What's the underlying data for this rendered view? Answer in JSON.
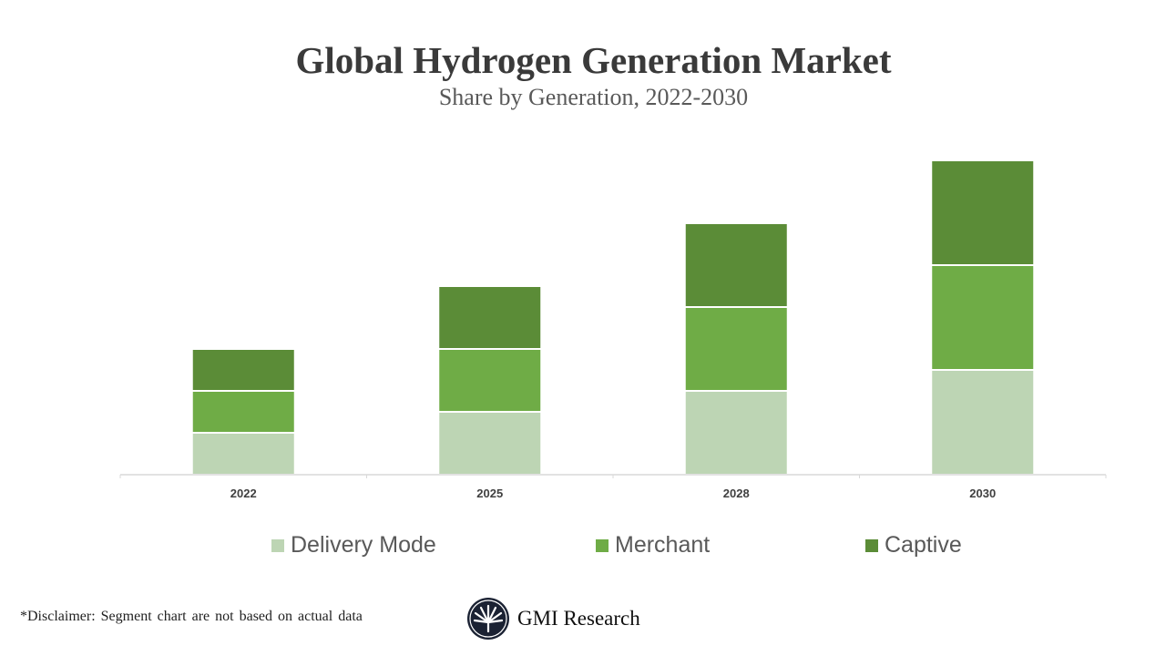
{
  "chart_data": {
    "type": "bar",
    "stacked": true,
    "title": "Global Hydrogen Generation Market",
    "subtitle": "Share by Generation, 2022-2030",
    "categories": [
      "2022",
      "2025",
      "2028",
      "2030"
    ],
    "series": [
      {
        "name": "Delivery Mode",
        "color": "#bdd5b4",
        "values": [
          2,
          3,
          4,
          5
        ]
      },
      {
        "name": "Merchant",
        "color": "#6fac46",
        "values": [
          2,
          3,
          4,
          5
        ]
      },
      {
        "name": "Captive",
        "color": "#5b8c37",
        "values": [
          2,
          3,
          4,
          5
        ]
      }
    ],
    "ylim": [
      0,
      16
    ],
    "grid": false,
    "y_axis_visible": false,
    "legend": "bottom"
  },
  "footer": {
    "disclaimer": "*Disclaimer:  Segment chart are not based on actual data",
    "brand": "GMI Research"
  }
}
